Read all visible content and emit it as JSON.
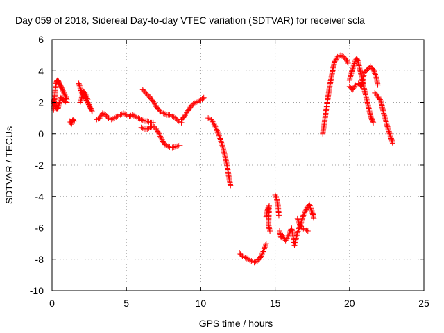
{
  "chart_data": {
    "type": "scatter",
    "title": "Day 059 of 2018, Sidereal Day-to-day VTEC variation (SDTVAR) for receiver scla",
    "xlabel": "GPS time / hours",
    "ylabel": "SDTVAR / TECUs",
    "xlim": [
      0,
      25
    ],
    "ylim": [
      -10,
      6
    ],
    "x_ticks": [
      0,
      5,
      10,
      15,
      20,
      25
    ],
    "y_ticks": [
      -10,
      -8,
      -6,
      -4,
      -2,
      0,
      2,
      4,
      6
    ],
    "grid": true,
    "marker": "+",
    "color": "#ff0000",
    "segments": [
      [
        [
          0.1,
          1.5
        ],
        [
          0.15,
          2.0
        ],
        [
          0.2,
          2.6
        ],
        [
          0.25,
          3.0
        ],
        [
          0.3,
          3.3
        ],
        [
          0.35,
          3.4
        ],
        [
          0.4,
          3.4
        ],
        [
          0.45,
          3.3
        ],
        [
          0.5,
          3.2
        ],
        [
          0.55,
          3.1
        ],
        [
          0.6,
          3.0
        ],
        [
          0.7,
          2.8
        ],
        [
          0.8,
          2.6
        ],
        [
          0.9,
          2.4
        ],
        [
          1.0,
          2.2
        ]
      ],
      [
        [
          0.1,
          2.2
        ],
        [
          0.2,
          1.8
        ],
        [
          0.3,
          1.6
        ],
        [
          0.4,
          1.6
        ],
        [
          0.5,
          2.0
        ],
        [
          0.6,
          2.3
        ],
        [
          0.7,
          2.2
        ],
        [
          0.8,
          2.1
        ],
        [
          1.0,
          2.0
        ]
      ],
      [
        [
          1.2,
          0.8
        ],
        [
          1.3,
          0.6
        ],
        [
          1.4,
          0.9
        ],
        [
          1.5,
          0.8
        ]
      ],
      [
        [
          1.8,
          3.2
        ],
        [
          1.9,
          2.9
        ],
        [
          2.0,
          2.6
        ],
        [
          2.1,
          2.5
        ],
        [
          2.2,
          2.4
        ],
        [
          2.3,
          2.2
        ],
        [
          2.4,
          2.0
        ],
        [
          2.5,
          1.8
        ],
        [
          2.6,
          1.6
        ],
        [
          2.7,
          1.4
        ]
      ],
      [
        [
          1.9,
          2.0
        ],
        [
          2.0,
          2.3
        ],
        [
          2.1,
          2.7
        ],
        [
          2.2,
          2.6
        ],
        [
          2.3,
          2.4
        ],
        [
          2.4,
          2.2
        ]
      ],
      [
        [
          3.0,
          0.9
        ],
        [
          3.2,
          1.0
        ],
        [
          3.4,
          1.3
        ],
        [
          3.6,
          1.2
        ],
        [
          3.8,
          1.0
        ],
        [
          4.0,
          0.9
        ],
        [
          4.2,
          1.0
        ],
        [
          4.4,
          1.1
        ],
        [
          4.6,
          1.2
        ],
        [
          4.8,
          1.3
        ],
        [
          5.0,
          1.2
        ],
        [
          5.2,
          1.1
        ],
        [
          5.4,
          1.2
        ],
        [
          5.6,
          1.1
        ],
        [
          5.8,
          1.0
        ],
        [
          6.0,
          0.9
        ],
        [
          6.2,
          0.8
        ],
        [
          6.4,
          0.8
        ],
        [
          6.6,
          0.7
        ],
        [
          6.8,
          0.7
        ]
      ],
      [
        [
          6.0,
          0.4
        ],
        [
          6.2,
          0.3
        ],
        [
          6.4,
          0.3
        ],
        [
          6.6,
          0.4
        ],
        [
          6.8,
          0.5
        ],
        [
          7.0,
          0.3
        ],
        [
          7.2,
          0.0
        ],
        [
          7.4,
          -0.4
        ],
        [
          7.6,
          -0.7
        ],
        [
          7.8,
          -0.8
        ],
        [
          8.0,
          -0.9
        ],
        [
          8.2,
          -0.85
        ],
        [
          8.4,
          -0.8
        ],
        [
          8.6,
          -0.75
        ]
      ],
      [
        [
          6.1,
          2.8
        ],
        [
          6.3,
          2.6
        ],
        [
          6.5,
          2.4
        ],
        [
          6.7,
          2.2
        ],
        [
          6.9,
          1.9
        ],
        [
          7.1,
          1.6
        ],
        [
          7.3,
          1.4
        ],
        [
          7.5,
          1.3
        ],
        [
          7.7,
          1.2
        ],
        [
          7.9,
          1.2
        ],
        [
          8.1,
          1.1
        ],
        [
          8.3,
          1.0
        ],
        [
          8.5,
          0.8
        ],
        [
          8.7,
          0.7
        ]
      ],
      [
        [
          8.7,
          0.9
        ],
        [
          8.9,
          1.1
        ],
        [
          9.1,
          1.4
        ],
        [
          9.3,
          1.7
        ],
        [
          9.5,
          1.9
        ],
        [
          9.7,
          2.0
        ],
        [
          9.9,
          2.1
        ],
        [
          10.1,
          2.2
        ],
        [
          10.2,
          2.3
        ]
      ],
      [
        [
          10.5,
          1.0
        ],
        [
          10.7,
          0.9
        ],
        [
          10.9,
          0.6
        ],
        [
          11.1,
          0.2
        ],
        [
          11.3,
          -0.3
        ],
        [
          11.5,
          -0.9
        ],
        [
          11.7,
          -1.7
        ],
        [
          11.8,
          -2.2
        ],
        [
          11.9,
          -2.8
        ],
        [
          12.0,
          -3.3
        ]
      ],
      [
        [
          12.6,
          -7.6
        ],
        [
          12.8,
          -7.8
        ],
        [
          13.0,
          -7.9
        ],
        [
          13.2,
          -8.0
        ],
        [
          13.4,
          -8.1
        ],
        [
          13.6,
          -8.2
        ],
        [
          13.8,
          -8.1
        ],
        [
          14.0,
          -7.9
        ],
        [
          14.2,
          -7.5
        ],
        [
          14.4,
          -7.0
        ]
      ],
      [
        [
          14.4,
          -5.3
        ],
        [
          14.5,
          -4.8
        ],
        [
          14.6,
          -4.6
        ],
        [
          14.55,
          -5.8
        ],
        [
          14.65,
          -6.2
        ]
      ],
      [
        [
          15.0,
          -3.9
        ],
        [
          15.1,
          -4.1
        ],
        [
          15.2,
          -4.6
        ],
        [
          15.25,
          -5.2
        ]
      ],
      [
        [
          15.3,
          -6.2
        ],
        [
          15.4,
          -6.6
        ],
        [
          15.5,
          -6.5
        ],
        [
          15.7,
          -6.8
        ],
        [
          15.9,
          -6.5
        ],
        [
          16.1,
          -6.0
        ],
        [
          16.2,
          -6.5
        ],
        [
          16.3,
          -7.1
        ],
        [
          16.5,
          -6.3
        ],
        [
          16.7,
          -5.8
        ],
        [
          16.9,
          -5.2
        ],
        [
          17.1,
          -4.8
        ],
        [
          17.3,
          -4.5
        ],
        [
          17.5,
          -5.0
        ],
        [
          17.6,
          -5.4
        ]
      ],
      [
        [
          16.5,
          -5.4
        ],
        [
          16.6,
          -5.7
        ],
        [
          16.8,
          -6.0
        ],
        [
          17.0,
          -6.1
        ],
        [
          17.2,
          -6.2
        ]
      ],
      [
        [
          18.2,
          0.0
        ],
        [
          18.3,
          0.6
        ],
        [
          18.4,
          1.3
        ],
        [
          18.5,
          2.0
        ],
        [
          18.6,
          2.6
        ],
        [
          18.7,
          3.2
        ],
        [
          18.8,
          3.7
        ],
        [
          18.9,
          4.2
        ],
        [
          19.0,
          4.6
        ],
        [
          19.2,
          4.9
        ],
        [
          19.4,
          5.0
        ],
        [
          19.6,
          4.9
        ],
        [
          19.8,
          4.7
        ],
        [
          19.9,
          4.5
        ]
      ],
      [
        [
          20.0,
          3.4
        ],
        [
          20.1,
          3.8
        ],
        [
          20.2,
          4.1
        ],
        [
          20.3,
          4.4
        ],
        [
          20.4,
          4.7
        ],
        [
          20.5,
          4.8
        ],
        [
          20.6,
          4.5
        ],
        [
          20.7,
          4.1
        ],
        [
          20.8,
          3.7
        ],
        [
          20.9,
          3.2
        ],
        [
          21.0,
          2.8
        ],
        [
          21.1,
          2.4
        ],
        [
          21.2,
          2.0
        ],
        [
          21.3,
          1.6
        ],
        [
          21.4,
          1.2
        ],
        [
          21.5,
          0.9
        ],
        [
          21.6,
          0.7
        ]
      ],
      [
        [
          20.0,
          3.0
        ],
        [
          20.2,
          2.8
        ],
        [
          20.4,
          3.1
        ],
        [
          20.6,
          3.2
        ],
        [
          20.8,
          3.0
        ],
        [
          21.0,
          3.9
        ],
        [
          21.2,
          4.1
        ],
        [
          21.4,
          4.3
        ],
        [
          21.6,
          4.1
        ],
        [
          21.8,
          3.6
        ],
        [
          21.9,
          3.1
        ]
      ],
      [
        [
          21.7,
          2.6
        ],
        [
          21.9,
          2.4
        ],
        [
          22.1,
          2.1
        ],
        [
          22.2,
          1.7
        ],
        [
          22.3,
          1.3
        ],
        [
          22.4,
          1.0
        ],
        [
          22.5,
          0.6
        ],
        [
          22.6,
          0.3
        ],
        [
          22.7,
          0.0
        ],
        [
          22.8,
          -0.3
        ],
        [
          22.9,
          -0.6
        ]
      ]
    ]
  }
}
